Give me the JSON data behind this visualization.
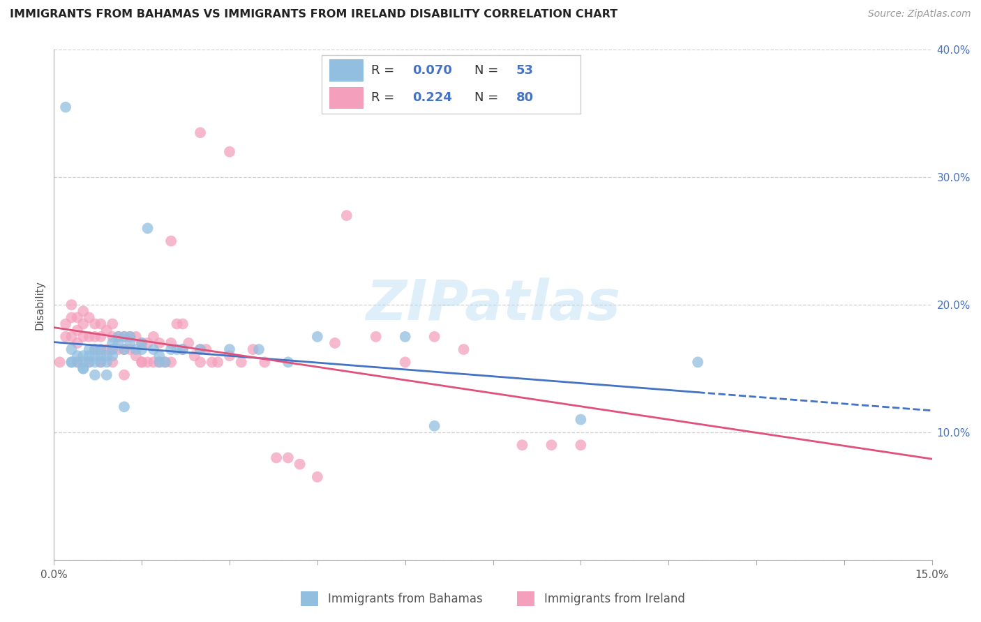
{
  "title": "IMMIGRANTS FROM BAHAMAS VS IMMIGRANTS FROM IRELAND DISABILITY CORRELATION CHART",
  "source": "Source: ZipAtlas.com",
  "ylabel": "Disability",
  "xlim": [
    0.0,
    0.15
  ],
  "ylim": [
    0.0,
    0.4
  ],
  "xtick_vals": [
    0.0,
    0.015,
    0.03,
    0.045,
    0.06,
    0.075,
    0.09,
    0.105,
    0.12,
    0.135,
    0.15
  ],
  "xtick_labels_show": {
    "0.0": "0.0%",
    "0.15": "15.0%"
  },
  "ytick_vals": [
    0.0,
    0.1,
    0.2,
    0.3,
    0.4
  ],
  "ytick_labels": [
    "",
    "10.0%",
    "20.0%",
    "30.0%",
    "40.0%"
  ],
  "bahamas_R": "0.070",
  "bahamas_N": "53",
  "ireland_R": "0.224",
  "ireland_N": "80",
  "bahamas_color": "#92BEE0",
  "ireland_color": "#F4A0BC",
  "bahamas_line_color": "#4472C4",
  "ireland_line_color": "#E0507A",
  "background_color": "#FFFFFF",
  "grid_color": "#CCCCCC",
  "bahamas_label": "Immigrants from Bahamas",
  "ireland_label": "Immigrants from Ireland",
  "bahamas_x": [
    0.002,
    0.003,
    0.003,
    0.004,
    0.004,
    0.005,
    0.005,
    0.005,
    0.006,
    0.006,
    0.006,
    0.007,
    0.007,
    0.007,
    0.008,
    0.008,
    0.008,
    0.009,
    0.009,
    0.01,
    0.01,
    0.01,
    0.011,
    0.011,
    0.012,
    0.012,
    0.013,
    0.013,
    0.014,
    0.015,
    0.015,
    0.016,
    0.017,
    0.018,
    0.018,
    0.019,
    0.02,
    0.021,
    0.022,
    0.025,
    0.03,
    0.035,
    0.04,
    0.045,
    0.06,
    0.065,
    0.09,
    0.11,
    0.003,
    0.005,
    0.007,
    0.009,
    0.012
  ],
  "bahamas_y": [
    0.355,
    0.165,
    0.155,
    0.16,
    0.155,
    0.16,
    0.155,
    0.15,
    0.165,
    0.16,
    0.155,
    0.165,
    0.16,
    0.155,
    0.165,
    0.16,
    0.155,
    0.16,
    0.155,
    0.17,
    0.165,
    0.16,
    0.175,
    0.17,
    0.175,
    0.165,
    0.175,
    0.17,
    0.165,
    0.17,
    0.165,
    0.26,
    0.165,
    0.16,
    0.155,
    0.155,
    0.165,
    0.165,
    0.165,
    0.165,
    0.165,
    0.165,
    0.155,
    0.175,
    0.175,
    0.105,
    0.11,
    0.155,
    0.155,
    0.15,
    0.145,
    0.145,
    0.12
  ],
  "ireland_x": [
    0.001,
    0.002,
    0.002,
    0.003,
    0.003,
    0.003,
    0.004,
    0.004,
    0.004,
    0.005,
    0.005,
    0.005,
    0.006,
    0.006,
    0.007,
    0.007,
    0.007,
    0.008,
    0.008,
    0.008,
    0.009,
    0.009,
    0.01,
    0.01,
    0.01,
    0.011,
    0.011,
    0.012,
    0.012,
    0.013,
    0.013,
    0.014,
    0.014,
    0.015,
    0.015,
    0.016,
    0.016,
    0.017,
    0.017,
    0.018,
    0.018,
    0.019,
    0.02,
    0.02,
    0.021,
    0.022,
    0.022,
    0.023,
    0.024,
    0.025,
    0.025,
    0.026,
    0.027,
    0.028,
    0.03,
    0.032,
    0.034,
    0.036,
    0.038,
    0.04,
    0.042,
    0.045,
    0.048,
    0.05,
    0.055,
    0.06,
    0.065,
    0.07,
    0.08,
    0.09,
    0.004,
    0.006,
    0.008,
    0.01,
    0.012,
    0.015,
    0.02,
    0.025,
    0.03,
    0.085
  ],
  "ireland_y": [
    0.155,
    0.185,
    0.175,
    0.2,
    0.19,
    0.175,
    0.19,
    0.18,
    0.17,
    0.195,
    0.185,
    0.175,
    0.19,
    0.175,
    0.185,
    0.175,
    0.165,
    0.185,
    0.175,
    0.165,
    0.18,
    0.165,
    0.185,
    0.175,
    0.165,
    0.175,
    0.165,
    0.175,
    0.165,
    0.175,
    0.165,
    0.175,
    0.16,
    0.17,
    0.155,
    0.17,
    0.155,
    0.175,
    0.155,
    0.17,
    0.155,
    0.155,
    0.17,
    0.155,
    0.185,
    0.185,
    0.165,
    0.17,
    0.16,
    0.165,
    0.155,
    0.165,
    0.155,
    0.155,
    0.16,
    0.155,
    0.165,
    0.155,
    0.08,
    0.08,
    0.075,
    0.065,
    0.17,
    0.27,
    0.175,
    0.155,
    0.175,
    0.165,
    0.09,
    0.09,
    0.155,
    0.155,
    0.155,
    0.155,
    0.145,
    0.155,
    0.25,
    0.335,
    0.32,
    0.09
  ]
}
